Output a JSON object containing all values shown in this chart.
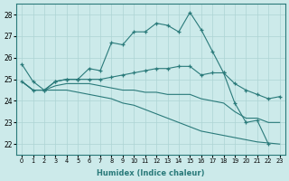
{
  "xlabel": "Humidex (Indice chaleur)",
  "xlim": [
    -0.5,
    23.5
  ],
  "ylim": [
    21.5,
    28.5
  ],
  "yticks": [
    22,
    23,
    24,
    25,
    26,
    27,
    28
  ],
  "xticks": [
    0,
    1,
    2,
    3,
    4,
    5,
    6,
    7,
    8,
    9,
    10,
    11,
    12,
    13,
    14,
    15,
    16,
    17,
    18,
    19,
    20,
    21,
    22,
    23
  ],
  "bg_color": "#cceaea",
  "line_color": "#2a7a7a",
  "grid_color": "#add4d4",
  "line1_x": [
    0,
    1,
    2,
    3,
    4,
    5,
    6,
    7,
    8,
    9,
    10,
    11,
    12,
    13,
    14,
    15,
    16,
    17,
    18,
    19,
    20,
    21,
    22
  ],
  "line1_y": [
    25.7,
    24.9,
    24.5,
    24.9,
    25.0,
    25.0,
    25.5,
    25.4,
    26.7,
    26.6,
    27.2,
    27.2,
    27.6,
    27.5,
    27.2,
    28.1,
    27.3,
    26.3,
    25.3,
    23.9,
    23.0,
    23.1,
    22.0
  ],
  "line2_x": [
    0,
    1,
    2,
    3,
    4,
    5,
    6,
    7,
    8,
    9,
    10,
    11,
    12,
    13,
    14,
    15,
    16,
    17,
    18,
    19,
    20,
    21,
    22,
    23
  ],
  "line2_y": [
    24.9,
    24.5,
    24.5,
    24.9,
    25.0,
    25.0,
    25.0,
    25.0,
    25.1,
    25.2,
    25.3,
    25.4,
    25.5,
    25.5,
    25.6,
    25.6,
    25.2,
    25.3,
    25.3,
    24.8,
    24.5,
    24.3,
    24.1,
    24.2
  ],
  "line3_x": [
    0,
    1,
    2,
    3,
    4,
    5,
    6,
    7,
    8,
    9,
    10,
    11,
    12,
    13,
    14,
    15,
    16,
    17,
    18,
    19,
    20,
    21,
    22,
    23
  ],
  "line3_y": [
    24.9,
    24.5,
    24.5,
    24.7,
    24.8,
    24.8,
    24.8,
    24.7,
    24.6,
    24.5,
    24.5,
    24.4,
    24.4,
    24.3,
    24.3,
    24.3,
    24.1,
    24.0,
    23.9,
    23.5,
    23.2,
    23.2,
    23.0,
    23.0
  ],
  "line4_x": [
    0,
    1,
    2,
    3,
    4,
    5,
    6,
    7,
    8,
    9,
    10,
    11,
    12,
    13,
    14,
    15,
    16,
    17,
    18,
    19,
    20,
    21,
    22,
    23
  ],
  "line4_y": [
    24.9,
    24.5,
    24.5,
    24.5,
    24.5,
    24.4,
    24.3,
    24.2,
    24.1,
    23.9,
    23.8,
    23.6,
    23.4,
    23.2,
    23.0,
    22.8,
    22.6,
    22.5,
    22.4,
    22.3,
    22.2,
    22.1,
    22.05,
    22.0
  ]
}
